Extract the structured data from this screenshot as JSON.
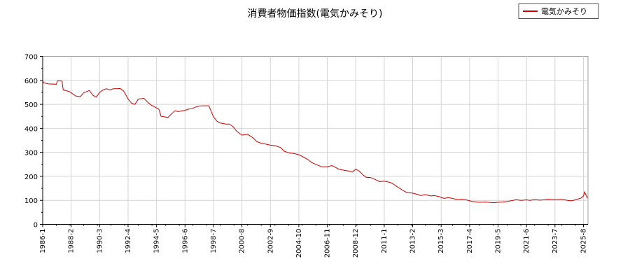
{
  "chart_data": {
    "type": "line",
    "title": "消費者物価指数(電気かみそり)",
    "xlabel": "",
    "ylabel": "",
    "ylim": [
      0,
      700
    ],
    "yticks": [
      0,
      100,
      200,
      300,
      400,
      500,
      600,
      700
    ],
    "x_tick_labels": [
      "1986-1",
      "1988-2",
      "1990-3",
      "1992-4",
      "1994-5",
      "1996-6",
      "1998-7",
      "2000-8",
      "2002-9",
      "2004-10",
      "2006-11",
      "2008-12",
      "2011-1",
      "2013-2",
      "2015-3",
      "2017-4",
      "2019-5",
      "2021-6",
      "2023-7",
      "2025-8"
    ],
    "grid": true,
    "legend_position": "top-right",
    "line_color": "#cc0000",
    "series": [
      {
        "name": "電気かみそり",
        "color": "#cc0000",
        "points": [
          [
            "1986-01",
            598
          ],
          [
            "1986-02",
            590
          ],
          [
            "1986-06",
            585
          ],
          [
            "1987-01",
            584
          ],
          [
            "1987-02",
            598
          ],
          [
            "1987-06",
            597
          ],
          [
            "1987-07",
            560
          ],
          [
            "1987-12",
            554
          ],
          [
            "1988-02",
            548
          ],
          [
            "1988-06",
            535
          ],
          [
            "1988-10",
            532
          ],
          [
            "1989-01",
            548
          ],
          [
            "1989-06",
            558
          ],
          [
            "1989-09",
            538
          ],
          [
            "1989-12",
            530
          ],
          [
            "1990-03",
            550
          ],
          [
            "1990-06",
            560
          ],
          [
            "1990-09",
            565
          ],
          [
            "1990-12",
            560
          ],
          [
            "1991-03",
            565
          ],
          [
            "1991-06",
            565
          ],
          [
            "1991-09",
            566
          ],
          [
            "1991-12",
            556
          ],
          [
            "1992-04",
            522
          ],
          [
            "1992-07",
            505
          ],
          [
            "1992-10",
            500
          ],
          [
            "1993-01",
            522
          ],
          [
            "1993-06",
            525
          ],
          [
            "1993-09",
            510
          ],
          [
            "1993-12",
            498
          ],
          [
            "1994-05",
            485
          ],
          [
            "1994-07",
            480
          ],
          [
            "1994-09",
            450
          ],
          [
            "1994-12",
            448
          ],
          [
            "1995-03",
            445
          ],
          [
            "1995-06",
            460
          ],
          [
            "1995-09",
            473
          ],
          [
            "1995-12",
            470
          ],
          [
            "1996-06",
            475
          ],
          [
            "1996-09",
            480
          ],
          [
            "1996-12",
            482
          ],
          [
            "1997-03",
            488
          ],
          [
            "1997-06",
            492
          ],
          [
            "1997-09",
            494
          ],
          [
            "1997-12",
            494
          ],
          [
            "1998-03",
            494
          ],
          [
            "1998-07",
            448
          ],
          [
            "1998-10",
            430
          ],
          [
            "1999-01",
            422
          ],
          [
            "1999-06",
            418
          ],
          [
            "1999-09",
            418
          ],
          [
            "1999-12",
            408
          ],
          [
            "2000-03",
            390
          ],
          [
            "2000-06",
            378
          ],
          [
            "2000-08",
            372
          ],
          [
            "2001-01",
            375
          ],
          [
            "2001-06",
            360
          ],
          [
            "2001-09",
            345
          ],
          [
            "2002-01",
            338
          ],
          [
            "2002-06",
            333
          ],
          [
            "2002-09",
            330
          ],
          [
            "2003-01",
            328
          ],
          [
            "2003-06",
            320
          ],
          [
            "2003-09",
            305
          ],
          [
            "2004-01",
            298
          ],
          [
            "2004-06",
            295
          ],
          [
            "2004-10",
            290
          ],
          [
            "2005-01",
            283
          ],
          [
            "2005-06",
            270
          ],
          [
            "2005-09",
            258
          ],
          [
            "2006-01",
            250
          ],
          [
            "2006-06",
            240
          ],
          [
            "2006-11",
            240
          ],
          [
            "2007-03",
            245
          ],
          [
            "2007-06",
            238
          ],
          [
            "2007-09",
            230
          ],
          [
            "2008-01",
            226
          ],
          [
            "2008-06",
            222
          ],
          [
            "2008-09",
            218
          ],
          [
            "2008-12",
            230
          ],
          [
            "2009-03",
            222
          ],
          [
            "2009-06",
            208
          ],
          [
            "2009-09",
            196
          ],
          [
            "2010-01",
            195
          ],
          [
            "2010-06",
            185
          ],
          [
            "2010-09",
            178
          ],
          [
            "2011-01",
            180
          ],
          [
            "2011-06",
            175
          ],
          [
            "2011-09",
            168
          ],
          [
            "2012-01",
            155
          ],
          [
            "2012-06",
            140
          ],
          [
            "2012-09",
            132
          ],
          [
            "2013-02",
            130
          ],
          [
            "2013-06",
            125
          ],
          [
            "2013-09",
            120
          ],
          [
            "2014-01",
            124
          ],
          [
            "2014-06",
            118
          ],
          [
            "2014-09",
            120
          ],
          [
            "2015-01",
            116
          ],
          [
            "2015-03",
            112
          ],
          [
            "2015-06",
            108
          ],
          [
            "2015-09",
            112
          ],
          [
            "2016-01",
            108
          ],
          [
            "2016-06",
            103
          ],
          [
            "2016-09",
            105
          ],
          [
            "2017-01",
            102
          ],
          [
            "2017-04",
            98
          ],
          [
            "2017-07",
            95
          ],
          [
            "2017-10",
            93
          ],
          [
            "2018-01",
            92
          ],
          [
            "2018-06",
            93
          ],
          [
            "2018-09",
            92
          ],
          [
            "2019-01",
            90
          ],
          [
            "2019-05",
            92
          ],
          [
            "2019-09",
            93
          ],
          [
            "2020-01",
            95
          ],
          [
            "2020-06",
            100
          ],
          [
            "2020-09",
            103
          ],
          [
            "2021-01",
            100
          ],
          [
            "2021-06",
            102
          ],
          [
            "2021-09",
            100
          ],
          [
            "2022-01",
            103
          ],
          [
            "2022-06",
            101
          ],
          [
            "2022-09",
            102
          ],
          [
            "2023-01",
            105
          ],
          [
            "2023-07",
            103
          ],
          [
            "2024-01",
            104
          ],
          [
            "2024-06",
            100
          ],
          [
            "2024-09",
            98
          ],
          [
            "2025-01",
            102
          ],
          [
            "2025-06",
            110
          ],
          [
            "2025-08",
            118
          ],
          [
            "2025-09",
            135
          ],
          [
            "2025-10",
            125
          ],
          [
            "2025-11",
            112
          ],
          [
            "2025-12",
            115
          ]
        ]
      }
    ]
  }
}
